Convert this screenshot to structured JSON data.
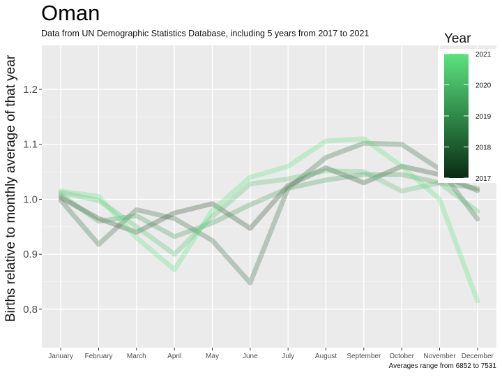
{
  "chart_data": {
    "type": "line",
    "title": "Oman",
    "subtitle": "Data from UN Demographic Statistics Database, including 5 years from 2017 to 2021",
    "caption": "Averages range from 6852 to 7531",
    "ylabel": "Births relative to monthly average of that year",
    "xlabel": "",
    "ylim": [
      0.73,
      1.28
    ],
    "yticks": [
      0.8,
      0.9,
      1.0,
      1.1,
      1.2
    ],
    "ytick_labels": [
      "0.8",
      "0.9",
      "1.0",
      "1.1",
      "1.2"
    ],
    "categories": [
      "January",
      "February",
      "March",
      "April",
      "May",
      "June",
      "July",
      "August",
      "September",
      "October",
      "November",
      "December"
    ],
    "grid": true,
    "legend": {
      "title": "Year",
      "type": "colorbar",
      "placement": "right",
      "ticks": [
        "2017",
        "2018",
        "2019",
        "2020",
        "2021"
      ],
      "color_low": "#0a2a12",
      "color_high": "#5ee27f"
    },
    "series": [
      {
        "name": "2017",
        "color": "#2f4f33",
        "values": [
          1.003,
          0.965,
          0.94,
          0.975,
          0.992,
          0.947,
          1.025,
          1.057,
          1.03,
          1.06,
          1.045,
          1.016
        ]
      },
      {
        "name": "2018",
        "color": "#3d6e47",
        "values": [
          0.998,
          0.918,
          0.981,
          0.965,
          0.925,
          0.848,
          1.02,
          1.076,
          1.102,
          1.1,
          1.055,
          0.964
        ]
      },
      {
        "name": "2019",
        "color": "#4a9a5e",
        "values": [
          1.008,
          0.96,
          0.97,
          0.932,
          0.957,
          0.99,
          1.02,
          1.035,
          1.045,
          1.045,
          1.03,
          1.02
        ]
      },
      {
        "name": "2020",
        "color": "#56c172",
        "values": [
          1.012,
          0.998,
          0.95,
          0.9,
          0.968,
          1.028,
          1.037,
          1.052,
          1.05,
          1.015,
          1.03,
          0.978
        ]
      },
      {
        "name": "2021",
        "color": "#5ee27f",
        "values": [
          1.015,
          1.005,
          0.93,
          0.872,
          0.98,
          1.04,
          1.06,
          1.106,
          1.11,
          1.06,
          1.0,
          0.815
        ]
      }
    ]
  }
}
